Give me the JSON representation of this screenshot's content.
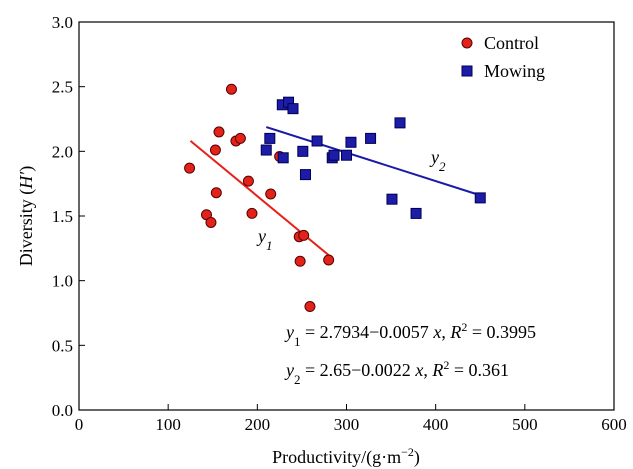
{
  "chart_data": {
    "type": "scatter",
    "xlabel": "Productivity/(g·m−2)",
    "xlabel_parts": {
      "text": "Productivity/(g·m",
      "sup": "−2",
      "close": ")"
    },
    "ylabel": "Diversity (H′)",
    "ylabel_parts": {
      "text": "Diversity (",
      "italic": "H′",
      "close": ")"
    },
    "xlim": [
      0,
      600
    ],
    "ylim": [
      0,
      3.0
    ],
    "xticks": [
      "0",
      "100",
      "200",
      "300",
      "400",
      "500",
      "600"
    ],
    "yticks": [
      "0.0",
      "0.5",
      "1.0",
      "1.5",
      "2.0",
      "2.5",
      "3.0"
    ],
    "xtick_values": [
      0,
      100,
      200,
      300,
      400,
      500,
      600
    ],
    "ytick_values": [
      0,
      0.5,
      1.0,
      1.5,
      2.0,
      2.5,
      3.0
    ],
    "grid": false,
    "legend_position": "top-right",
    "series": [
      {
        "name": "Control",
        "marker": "circle",
        "color": "#e2231a",
        "points": [
          [
            124,
            1.87
          ],
          [
            143,
            1.51
          ],
          [
            148,
            1.45
          ],
          [
            153,
            2.01
          ],
          [
            154,
            1.68
          ],
          [
            157,
            2.15
          ],
          [
            171,
            2.48
          ],
          [
            176,
            2.08
          ],
          [
            181,
            2.1
          ],
          [
            190,
            1.77
          ],
          [
            194,
            1.52
          ],
          [
            215,
            1.67
          ],
          [
            225,
            1.96
          ],
          [
            247,
            1.34
          ],
          [
            248,
            1.15
          ],
          [
            252,
            1.35
          ],
          [
            259,
            0.8
          ],
          [
            280,
            1.16
          ]
        ],
        "fit": {
          "label": "y",
          "label_sub": "1",
          "x_range": [
            125,
            283
          ],
          "intercept": 2.7934,
          "slope": -0.0057
        }
      },
      {
        "name": "Mowing",
        "marker": "square",
        "color": "#1c1ca8",
        "points": [
          [
            210,
            2.01
          ],
          [
            214,
            2.1
          ],
          [
            228,
            2.36
          ],
          [
            229,
            1.95
          ],
          [
            235,
            2.38
          ],
          [
            240,
            2.33
          ],
          [
            251,
            2.0
          ],
          [
            254,
            1.82
          ],
          [
            267,
            2.08
          ],
          [
            284,
            1.95
          ],
          [
            286,
            1.97
          ],
          [
            300,
            1.97
          ],
          [
            305,
            2.07
          ],
          [
            327,
            2.1
          ],
          [
            351,
            1.63
          ],
          [
            360,
            2.22
          ],
          [
            378,
            1.52
          ],
          [
            450,
            1.64
          ]
        ],
        "fit": {
          "label": "y",
          "label_sub": "2",
          "x_range": [
            210,
            452
          ],
          "intercept": 2.65,
          "slope": -0.0022
        }
      }
    ],
    "annotations": [
      {
        "y": "y",
        "sub": "1",
        "eq": " = 2.7934−0.0057 ",
        "xvar": "x",
        "r": ", R",
        "rsup": "2",
        "rval": " = 0.3995"
      },
      {
        "y": "y",
        "sub": "2",
        "eq": " = 2.65−0.0022 ",
        "xvar": "x",
        "r": ", R",
        "rsup": "2",
        "rval": " = 0.361"
      }
    ]
  }
}
